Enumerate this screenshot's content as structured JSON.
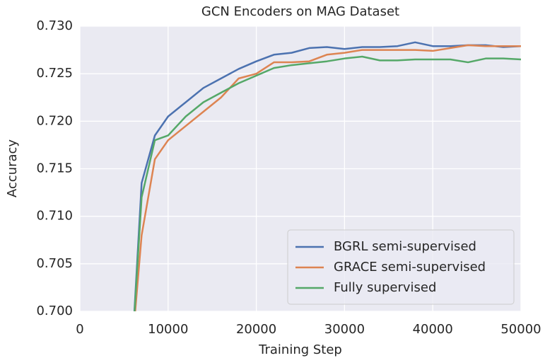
{
  "chart_data": {
    "type": "line",
    "title": "GCN Encoders on MAG Dataset",
    "x_label": "Training Step",
    "y_label": "Accuracy",
    "x": [
      6000,
      7000,
      8500,
      10000,
      12000,
      14000,
      16000,
      18000,
      20000,
      22000,
      24000,
      26000,
      28000,
      30000,
      32000,
      34000,
      36000,
      38000,
      40000,
      42000,
      44000,
      46000,
      48000,
      50000
    ],
    "series": [
      {
        "name": "BGRL semi-supervised",
        "color": "#4c72b0",
        "values": [
          0.697,
          0.7135,
          0.7185,
          0.7205,
          0.722,
          0.7235,
          0.7245,
          0.7255,
          0.7263,
          0.727,
          0.7272,
          0.7277,
          0.7278,
          0.7276,
          0.7278,
          0.7278,
          0.7279,
          0.7283,
          0.7279,
          0.7279,
          0.728,
          0.728,
          0.7278,
          0.7279
        ]
      },
      {
        "name": "GRACE semi-supervised",
        "color": "#dd8452",
        "values": [
          0.697,
          0.708,
          0.716,
          0.718,
          0.7195,
          0.721,
          0.7225,
          0.7245,
          0.725,
          0.7262,
          0.7262,
          0.7263,
          0.727,
          0.7272,
          0.7275,
          0.7275,
          0.7275,
          0.7275,
          0.7274,
          0.7277,
          0.728,
          0.7279,
          0.7279,
          0.7279
        ]
      },
      {
        "name": "Fully supervised",
        "color": "#55a868",
        "values": [
          0.697,
          0.712,
          0.718,
          0.7185,
          0.7205,
          0.722,
          0.723,
          0.724,
          0.7248,
          0.7256,
          0.7259,
          0.7261,
          0.7263,
          0.7266,
          0.7268,
          0.7264,
          0.7264,
          0.7265,
          0.7265,
          0.7265,
          0.7262,
          0.7266,
          0.7266,
          0.7265
        ]
      }
    ],
    "xlim": [
      0,
      50000
    ],
    "xticks": [
      0,
      10000,
      20000,
      30000,
      40000,
      50000
    ],
    "ylim": [
      0.7,
      0.73
    ],
    "yticks": [
      {
        "value": 0.7,
        "label": "0.700"
      },
      {
        "value": 0.705,
        "label": "0.705"
      },
      {
        "value": 0.71,
        "label": "0.710"
      },
      {
        "value": 0.715,
        "label": "0.715"
      },
      {
        "value": 0.72,
        "label": "0.720"
      },
      {
        "value": 0.725,
        "label": "0.725"
      },
      {
        "value": 0.73,
        "label": "0.730"
      }
    ],
    "grid": true,
    "legend": "lower right"
  }
}
